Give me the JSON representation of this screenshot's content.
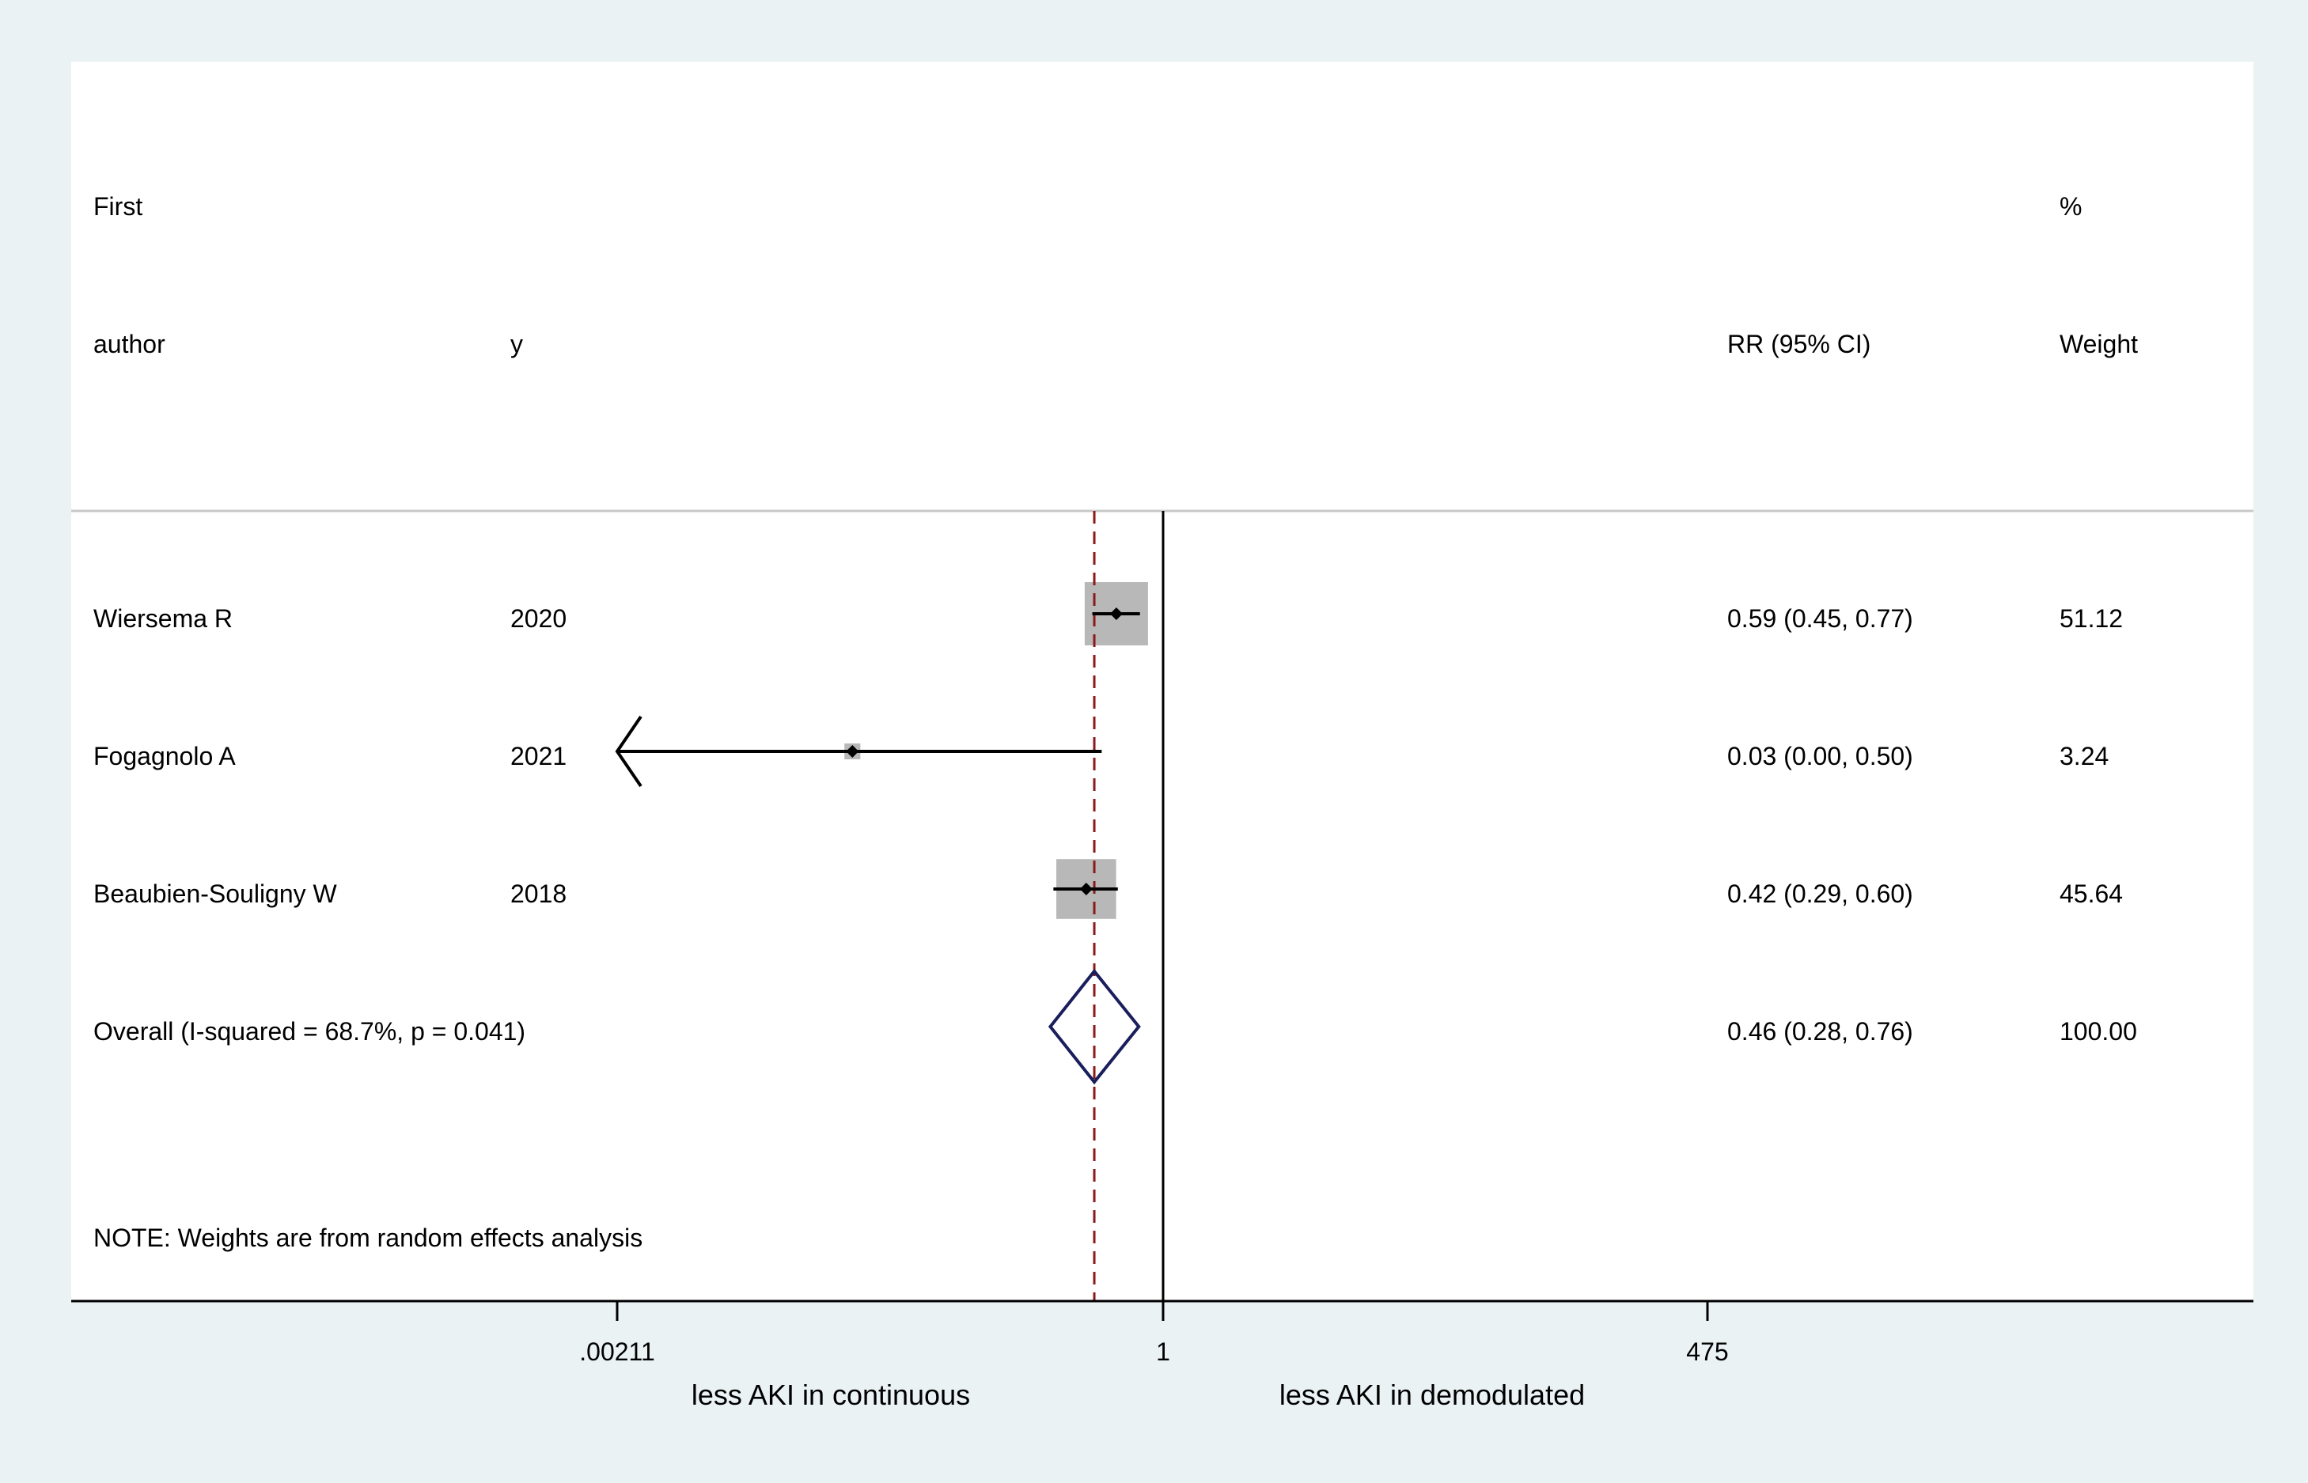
{
  "headers": {
    "col1_line1": "First",
    "col1_line2": "author",
    "col2": "y",
    "col3": "RR (95% CI)",
    "col4_line1": "%",
    "col4_line2": "Weight"
  },
  "rows": [
    {
      "author": "Wiersema R",
      "year": "2020",
      "ci_text": "0.59 (0.45, 0.77)",
      "weight_text": "51.12"
    },
    {
      "author": "Fogagnolo A",
      "year": "2021",
      "ci_text": "0.03 (0.00, 0.50)",
      "weight_text": "3.24"
    },
    {
      "author": "Beaubien-Souligny W",
      "year": "2018",
      "ci_text": "0.42 (0.29, 0.60)",
      "weight_text": "45.64"
    }
  ],
  "overall": {
    "label": "Overall  (I-squared = 68.7%, p = 0.041)",
    "ci_text": "0.46 (0.28, 0.76)",
    "weight_text": "100.00"
  },
  "note": "NOTE: Weights are from random effects analysis",
  "axis": {
    "ticks": [
      ".00211",
      "1",
      "475"
    ],
    "left_label": "less AKI in continuous",
    "right_label": "less AKI in demodulated"
  },
  "colors": {
    "page_bg": "#eaf2f3",
    "plot_bg": "#ffffff",
    "box": "#b8b8b8",
    "diamond": "#1a1f5c",
    "ref_dashed": "#8b1a1a",
    "line": "#000000"
  },
  "chart_data": {
    "type": "forest",
    "x_scale": "log",
    "xlim": [
      0.00211,
      475
    ],
    "null_value": 1,
    "pooled_estimate": 0.46,
    "studies": [
      {
        "name": "Wiersema R",
        "year": 2020,
        "rr": 0.59,
        "lo": 0.45,
        "hi": 0.77,
        "weight": 51.12
      },
      {
        "name": "Fogagnolo A",
        "year": 2021,
        "rr": 0.03,
        "lo": 0.0,
        "hi": 0.5,
        "weight": 3.24,
        "arrow_left": true
      },
      {
        "name": "Beaubien-Souligny W",
        "year": 2018,
        "rr": 0.42,
        "lo": 0.29,
        "hi": 0.6,
        "weight": 45.64
      }
    ],
    "overall": {
      "rr": 0.46,
      "lo": 0.28,
      "hi": 0.76,
      "weight": 100.0
    }
  }
}
